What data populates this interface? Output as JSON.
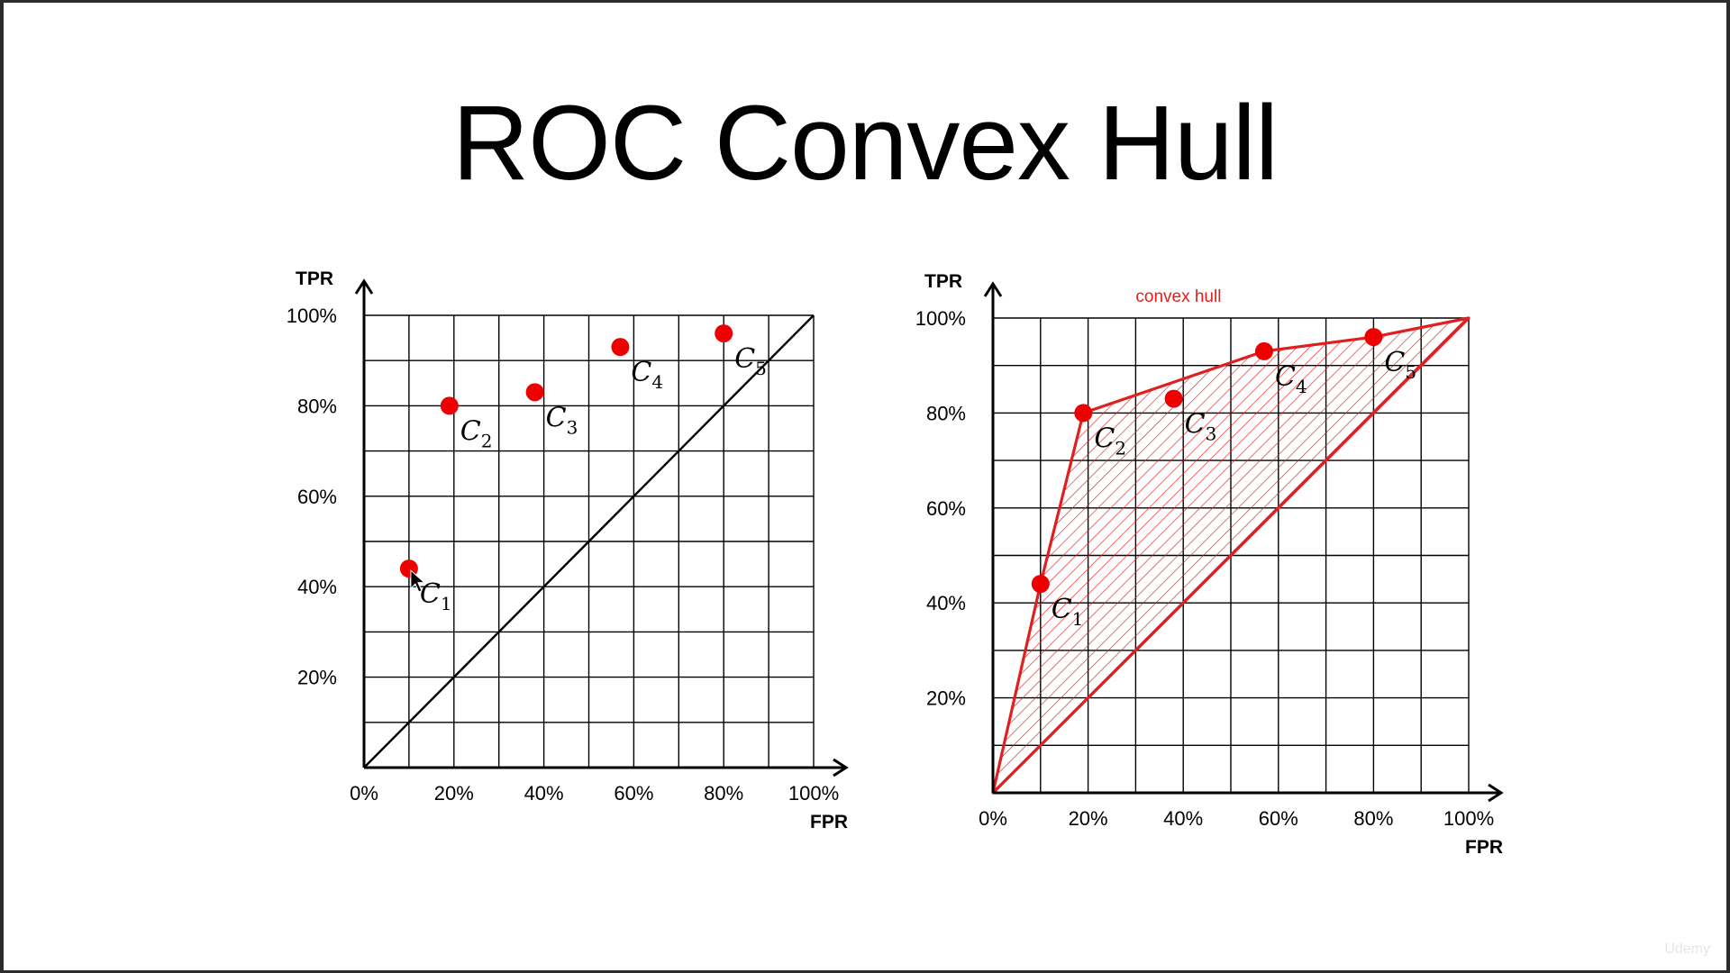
{
  "slide": {
    "title": "ROC Convex Hull",
    "watermark": "Udemy"
  },
  "colors": {
    "point": "#ee0000",
    "hull": "#e02020",
    "grid": "#000000"
  },
  "chart_data": [
    {
      "type": "scatter",
      "title": "",
      "xlabel": "FPR",
      "ylabel": "TPR",
      "xlim": [
        0,
        100
      ],
      "ylim": [
        0,
        100
      ],
      "x_ticks": [
        "0%",
        "20%",
        "40%",
        "60%",
        "80%",
        "100%"
      ],
      "y_ticks": [
        "20%",
        "40%",
        "60%",
        "80%",
        "100%"
      ],
      "grid": true,
      "diagonal": true,
      "points": [
        {
          "label": "C",
          "sub": "1",
          "x": 10,
          "y": 44
        },
        {
          "label": "C",
          "sub": "2",
          "x": 19,
          "y": 80
        },
        {
          "label": "C",
          "sub": "3",
          "x": 38,
          "y": 83
        },
        {
          "label": "C",
          "sub": "4",
          "x": 57,
          "y": 93
        },
        {
          "label": "C",
          "sub": "5",
          "x": 80,
          "y": 96
        }
      ]
    },
    {
      "type": "scatter",
      "title": "",
      "xlabel": "FPR",
      "ylabel": "TPR",
      "xlim": [
        0,
        100
      ],
      "ylim": [
        0,
        100
      ],
      "x_ticks": [
        "0%",
        "20%",
        "40%",
        "60%",
        "80%",
        "100%"
      ],
      "y_ticks": [
        "20%",
        "40%",
        "60%",
        "80%",
        "100%"
      ],
      "grid": true,
      "annotation": "convex hull",
      "hull": [
        [
          0,
          0
        ],
        [
          10,
          44
        ],
        [
          19,
          80
        ],
        [
          57,
          93
        ],
        [
          80,
          96
        ],
        [
          100,
          100
        ]
      ],
      "points": [
        {
          "label": "C",
          "sub": "1",
          "x": 10,
          "y": 44
        },
        {
          "label": "C",
          "sub": "2",
          "x": 19,
          "y": 80
        },
        {
          "label": "C",
          "sub": "3",
          "x": 38,
          "y": 83
        },
        {
          "label": "C",
          "sub": "4",
          "x": 57,
          "y": 93
        },
        {
          "label": "C",
          "sub": "5",
          "x": 80,
          "y": 96
        }
      ]
    }
  ]
}
